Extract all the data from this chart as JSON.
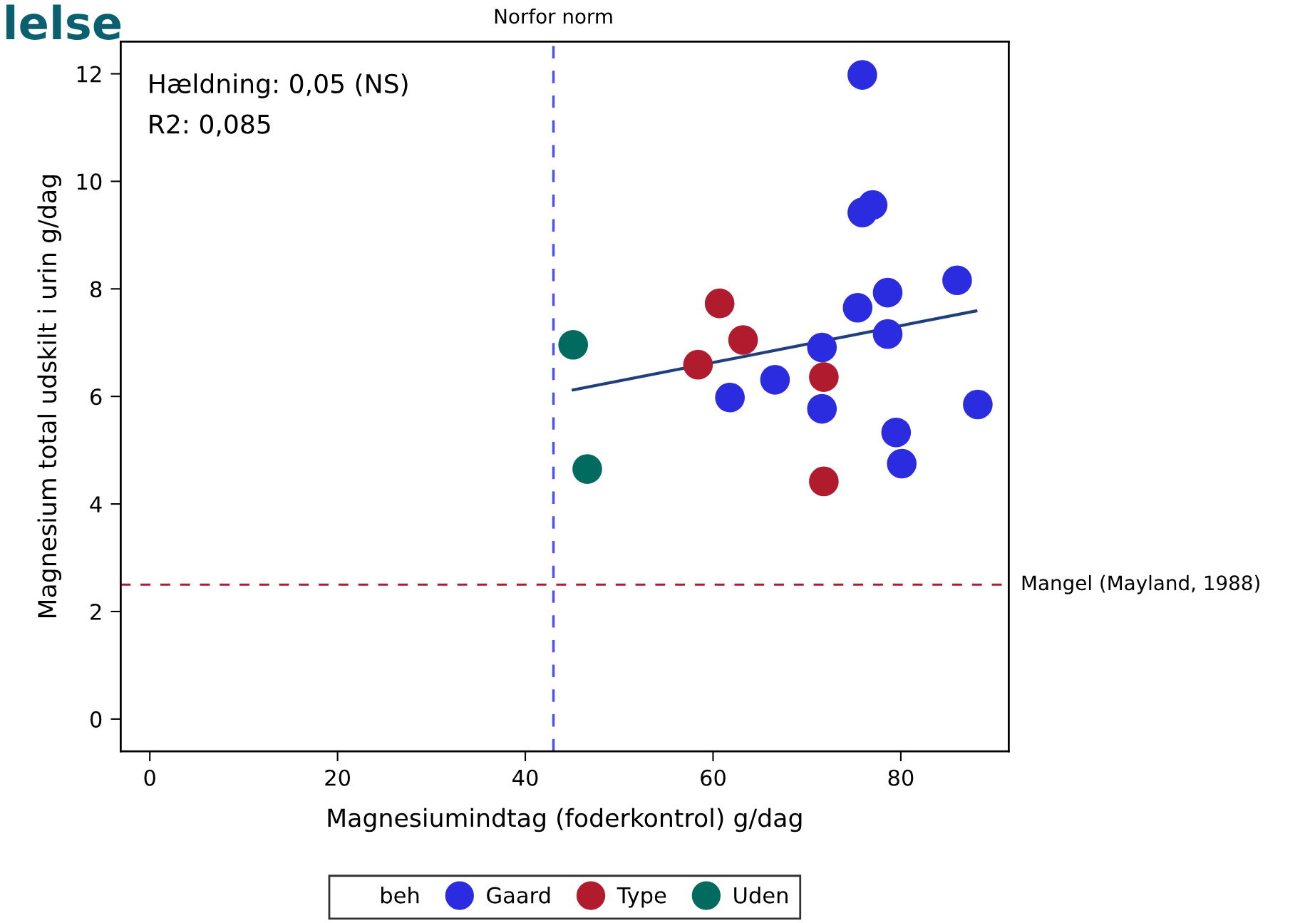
{
  "chart_data": {
    "type": "scatter",
    "title": "lelse",
    "xlabel": "Magnesiumindtag (foderkontrol) g/dag",
    "ylabel": "Magnesium total udskilt i urin g/dag",
    "legend_title": "beh",
    "annotations": [
      "Hældning: 0,05 (NS)",
      "R2: 0,085"
    ],
    "xlim": [
      -3.1,
      91.5
    ],
    "ylim": [
      -0.6,
      12.6
    ],
    "xticks": [
      0,
      20,
      40,
      60,
      80
    ],
    "yticks": [
      0,
      2,
      4,
      6,
      8,
      10,
      12
    ],
    "grid": false,
    "legend": "bottom",
    "marker": "circle",
    "series": [
      {
        "name": "Gaard",
        "color": "#2b2be0",
        "x": [
          75.9,
          75.9,
          77.0,
          86.0,
          78.6,
          75.4,
          78.6,
          71.6,
          66.6,
          61.8,
          71.6,
          88.2,
          79.5,
          80.1
        ],
        "values": [
          11.98,
          9.42,
          9.56,
          8.16,
          7.93,
          7.65,
          7.16,
          6.91,
          6.31,
          5.98,
          5.77,
          5.85,
          5.33,
          4.75
        ]
      },
      {
        "name": "Type",
        "color": "#b01c2e",
        "x": [
          60.7,
          63.2,
          58.4,
          71.8,
          71.8
        ],
        "values": [
          7.73,
          7.05,
          6.59,
          6.36,
          4.42
        ]
      },
      {
        "name": "Uden",
        "color": "#006b5e",
        "x": [
          45.1,
          46.6
        ],
        "values": [
          6.96,
          4.65
        ]
      },
      {
        "type": "line",
        "color": "#1f3f7f",
        "line_style": "solid",
        "marker": "none",
        "x": [
          45.1,
          88.0
        ],
        "values": [
          6.12,
          7.59
        ]
      }
    ],
    "ref_lines": [
      {
        "axis": "x",
        "value": 43.0,
        "label": "Norfor norm",
        "color": "#5050f0",
        "line_style": "dashed"
      },
      {
        "axis": "y",
        "value": 2.5,
        "label": "Mangel (Mayland, 1988)",
        "color": "#b01c2e",
        "line_style": "dashed"
      }
    ]
  }
}
